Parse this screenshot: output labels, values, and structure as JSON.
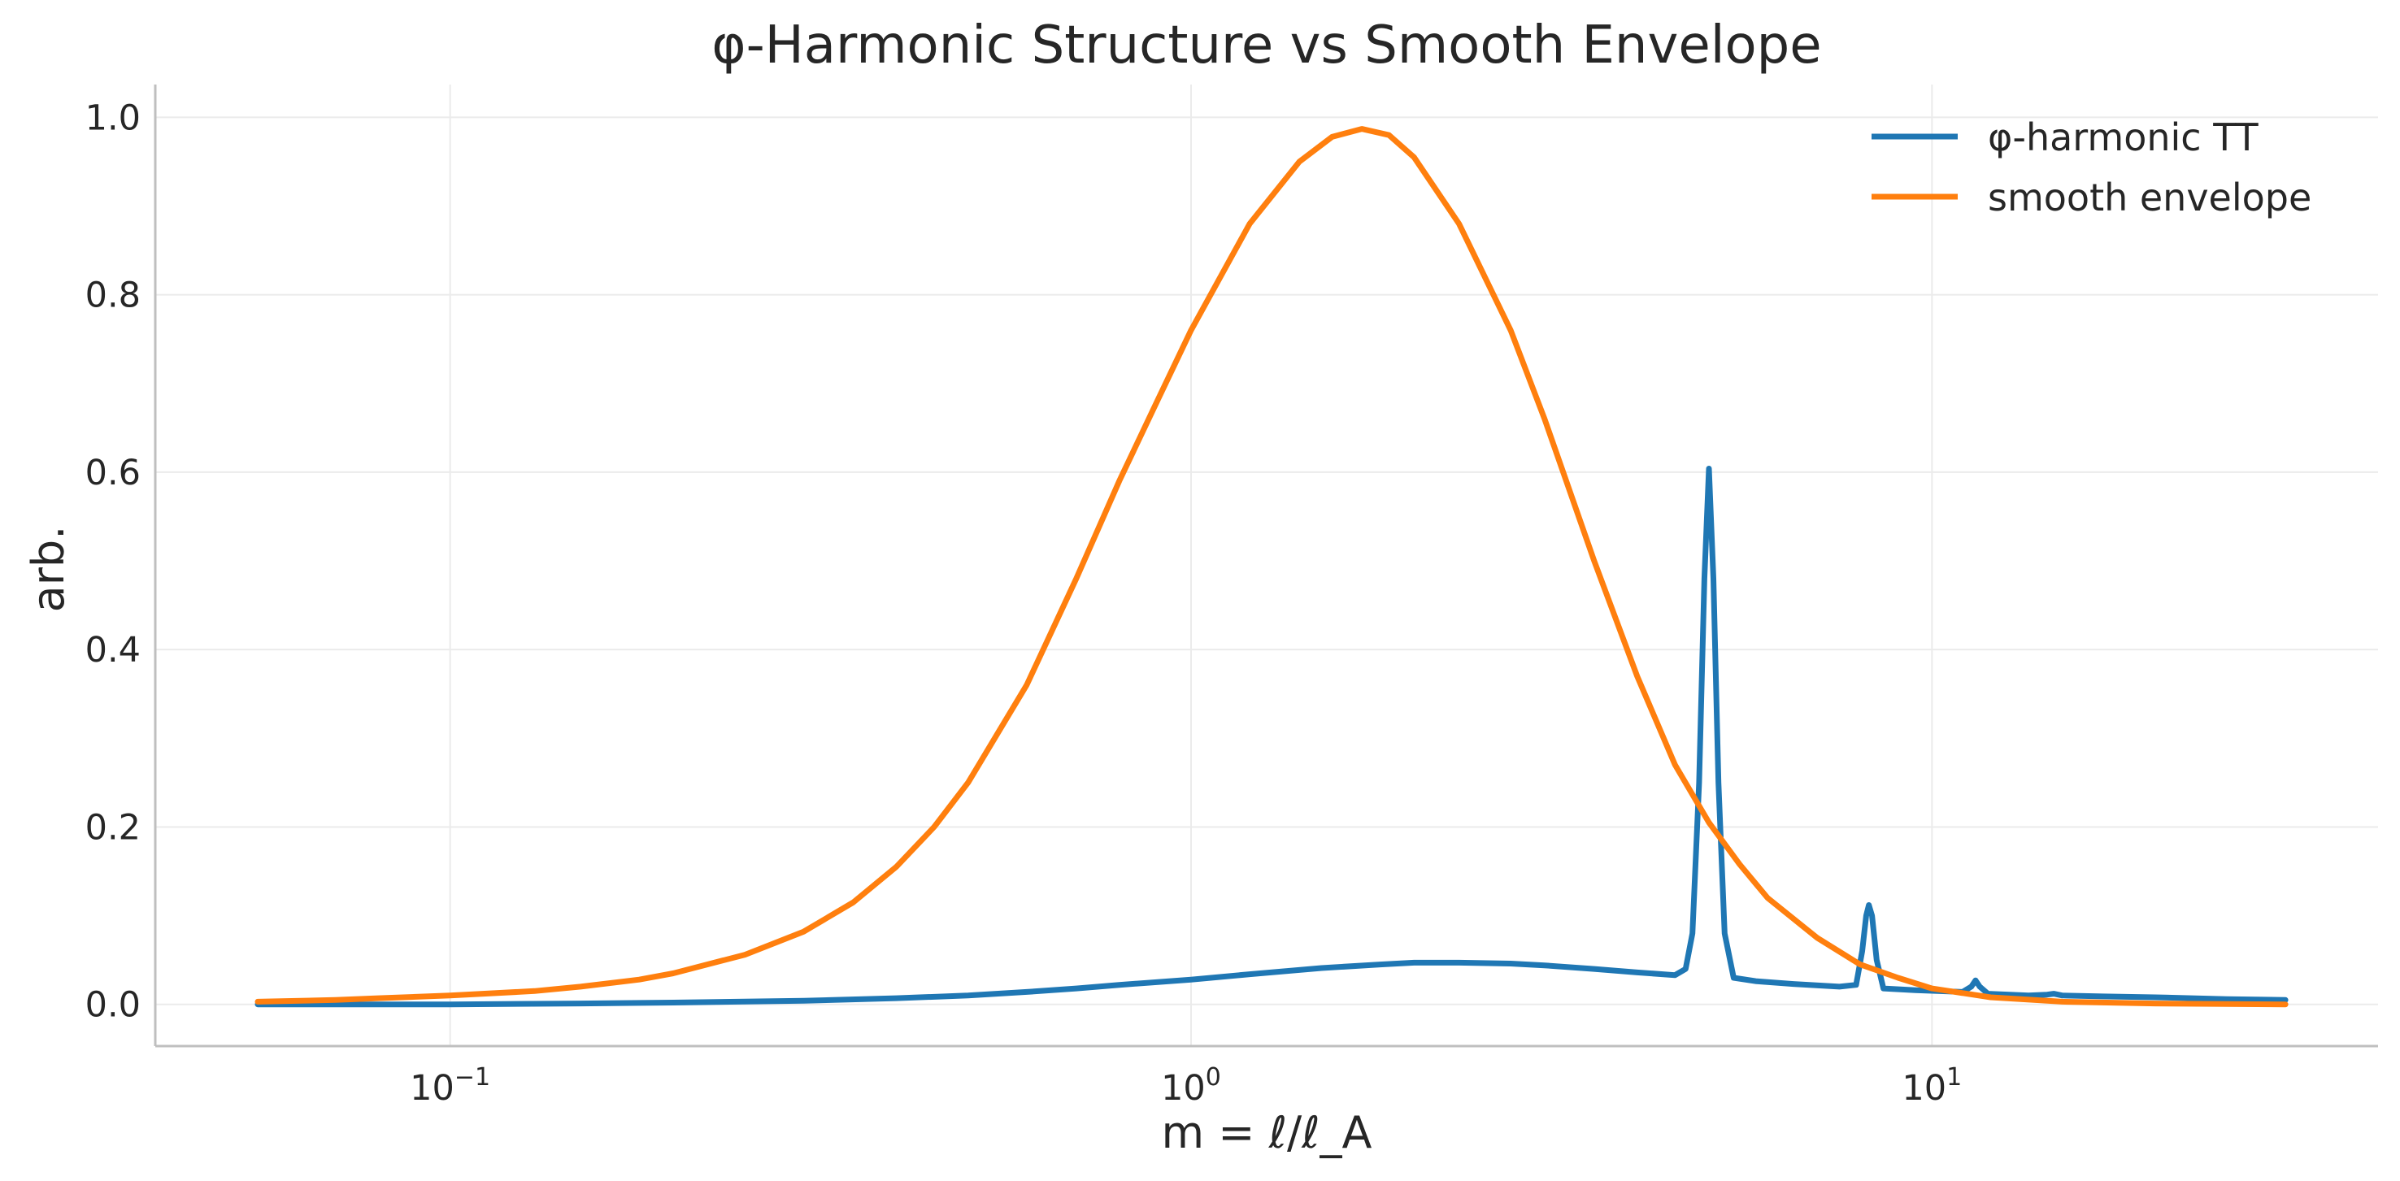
{
  "chart_data": {
    "type": "line",
    "title": "φ-Harmonic Structure vs Smooth Envelope",
    "xlabel": "m = ℓ/ℓ_A",
    "ylabel": "arb.",
    "x_scale": "log",
    "xlim": [
      0.04,
      40
    ],
    "ylim": [
      -0.047,
      1.037
    ],
    "x_ticks": [
      {
        "value": 0.1,
        "base": "10",
        "exp": "−1"
      },
      {
        "value": 1,
        "base": "10",
        "exp": "0"
      },
      {
        "value": 10,
        "base": "10",
        "exp": "1"
      }
    ],
    "y_ticks": [
      {
        "value": 0.0,
        "label": "0.0"
      },
      {
        "value": 0.2,
        "label": "0.2"
      },
      {
        "value": 0.4,
        "label": "0.4"
      },
      {
        "value": 0.6,
        "label": "0.6"
      },
      {
        "value": 0.8,
        "label": "0.8"
      },
      {
        "value": 1.0,
        "label": "1.0"
      }
    ],
    "grid": true,
    "legend_position": "top-right",
    "series": [
      {
        "name": "φ-harmonic TT",
        "color": "#1f77b4",
        "points": [
          [
            0.055,
            0.0
          ],
          [
            0.08,
            0.0
          ],
          [
            0.1,
            0.0
          ],
          [
            0.15,
            0.001
          ],
          [
            0.2,
            0.002
          ],
          [
            0.3,
            0.004
          ],
          [
            0.4,
            0.007
          ],
          [
            0.5,
            0.01
          ],
          [
            0.6,
            0.014
          ],
          [
            0.7,
            0.018
          ],
          [
            0.8,
            0.022
          ],
          [
            1.0,
            0.028
          ],
          [
            1.2,
            0.034
          ],
          [
            1.5,
            0.041
          ],
          [
            1.8,
            0.045
          ],
          [
            2.0,
            0.047
          ],
          [
            2.3,
            0.047
          ],
          [
            2.7,
            0.046
          ],
          [
            3.0,
            0.044
          ],
          [
            3.5,
            0.04
          ],
          [
            4.0,
            0.036
          ],
          [
            4.5,
            0.033
          ],
          [
            4.65,
            0.04
          ],
          [
            4.75,
            0.08
          ],
          [
            4.85,
            0.25
          ],
          [
            4.93,
            0.48
          ],
          [
            5.0,
            0.604
          ],
          [
            5.07,
            0.48
          ],
          [
            5.15,
            0.25
          ],
          [
            5.25,
            0.08
          ],
          [
            5.4,
            0.03
          ],
          [
            5.8,
            0.026
          ],
          [
            6.5,
            0.023
          ],
          [
            7.5,
            0.02
          ],
          [
            7.9,
            0.022
          ],
          [
            8.05,
            0.06
          ],
          [
            8.15,
            0.1
          ],
          [
            8.22,
            0.112
          ],
          [
            8.3,
            0.1
          ],
          [
            8.42,
            0.05
          ],
          [
            8.6,
            0.018
          ],
          [
            9.5,
            0.016
          ],
          [
            11.0,
            0.014
          ],
          [
            11.3,
            0.02
          ],
          [
            11.45,
            0.027
          ],
          [
            11.6,
            0.02
          ],
          [
            11.9,
            0.012
          ],
          [
            13.5,
            0.01
          ],
          [
            14.3,
            0.011
          ],
          [
            14.6,
            0.012
          ],
          [
            15.0,
            0.01
          ],
          [
            17.0,
            0.009
          ],
          [
            20.0,
            0.008
          ],
          [
            25.0,
            0.006
          ],
          [
            30.0,
            0.005
          ]
        ]
      },
      {
        "name": "smooth envelope",
        "color": "#ff7f0e",
        "points": [
          [
            0.055,
            0.003
          ],
          [
            0.07,
            0.005
          ],
          [
            0.08,
            0.007
          ],
          [
            0.1,
            0.01
          ],
          [
            0.13,
            0.015
          ],
          [
            0.15,
            0.02
          ],
          [
            0.18,
            0.028
          ],
          [
            0.2,
            0.035
          ],
          [
            0.25,
            0.056
          ],
          [
            0.3,
            0.082
          ],
          [
            0.35,
            0.115
          ],
          [
            0.4,
            0.155
          ],
          [
            0.45,
            0.2
          ],
          [
            0.5,
            0.25
          ],
          [
            0.6,
            0.36
          ],
          [
            0.7,
            0.48
          ],
          [
            0.8,
            0.59
          ],
          [
            0.9,
            0.68
          ],
          [
            1.0,
            0.76
          ],
          [
            1.2,
            0.88
          ],
          [
            1.4,
            0.95
          ],
          [
            1.55,
            0.978
          ],
          [
            1.7,
            0.987
          ],
          [
            1.85,
            0.98
          ],
          [
            2.0,
            0.955
          ],
          [
            2.3,
            0.88
          ],
          [
            2.7,
            0.76
          ],
          [
            3.0,
            0.66
          ],
          [
            3.5,
            0.5
          ],
          [
            4.0,
            0.37
          ],
          [
            4.5,
            0.27
          ],
          [
            5.0,
            0.205
          ],
          [
            5.5,
            0.158
          ],
          [
            6.0,
            0.12
          ],
          [
            7.0,
            0.075
          ],
          [
            8.0,
            0.045
          ],
          [
            9.0,
            0.03
          ],
          [
            10.0,
            0.018
          ],
          [
            12.0,
            0.008
          ],
          [
            15.0,
            0.003
          ],
          [
            20.0,
            0.001
          ],
          [
            30.0,
            0.0
          ]
        ]
      }
    ]
  }
}
